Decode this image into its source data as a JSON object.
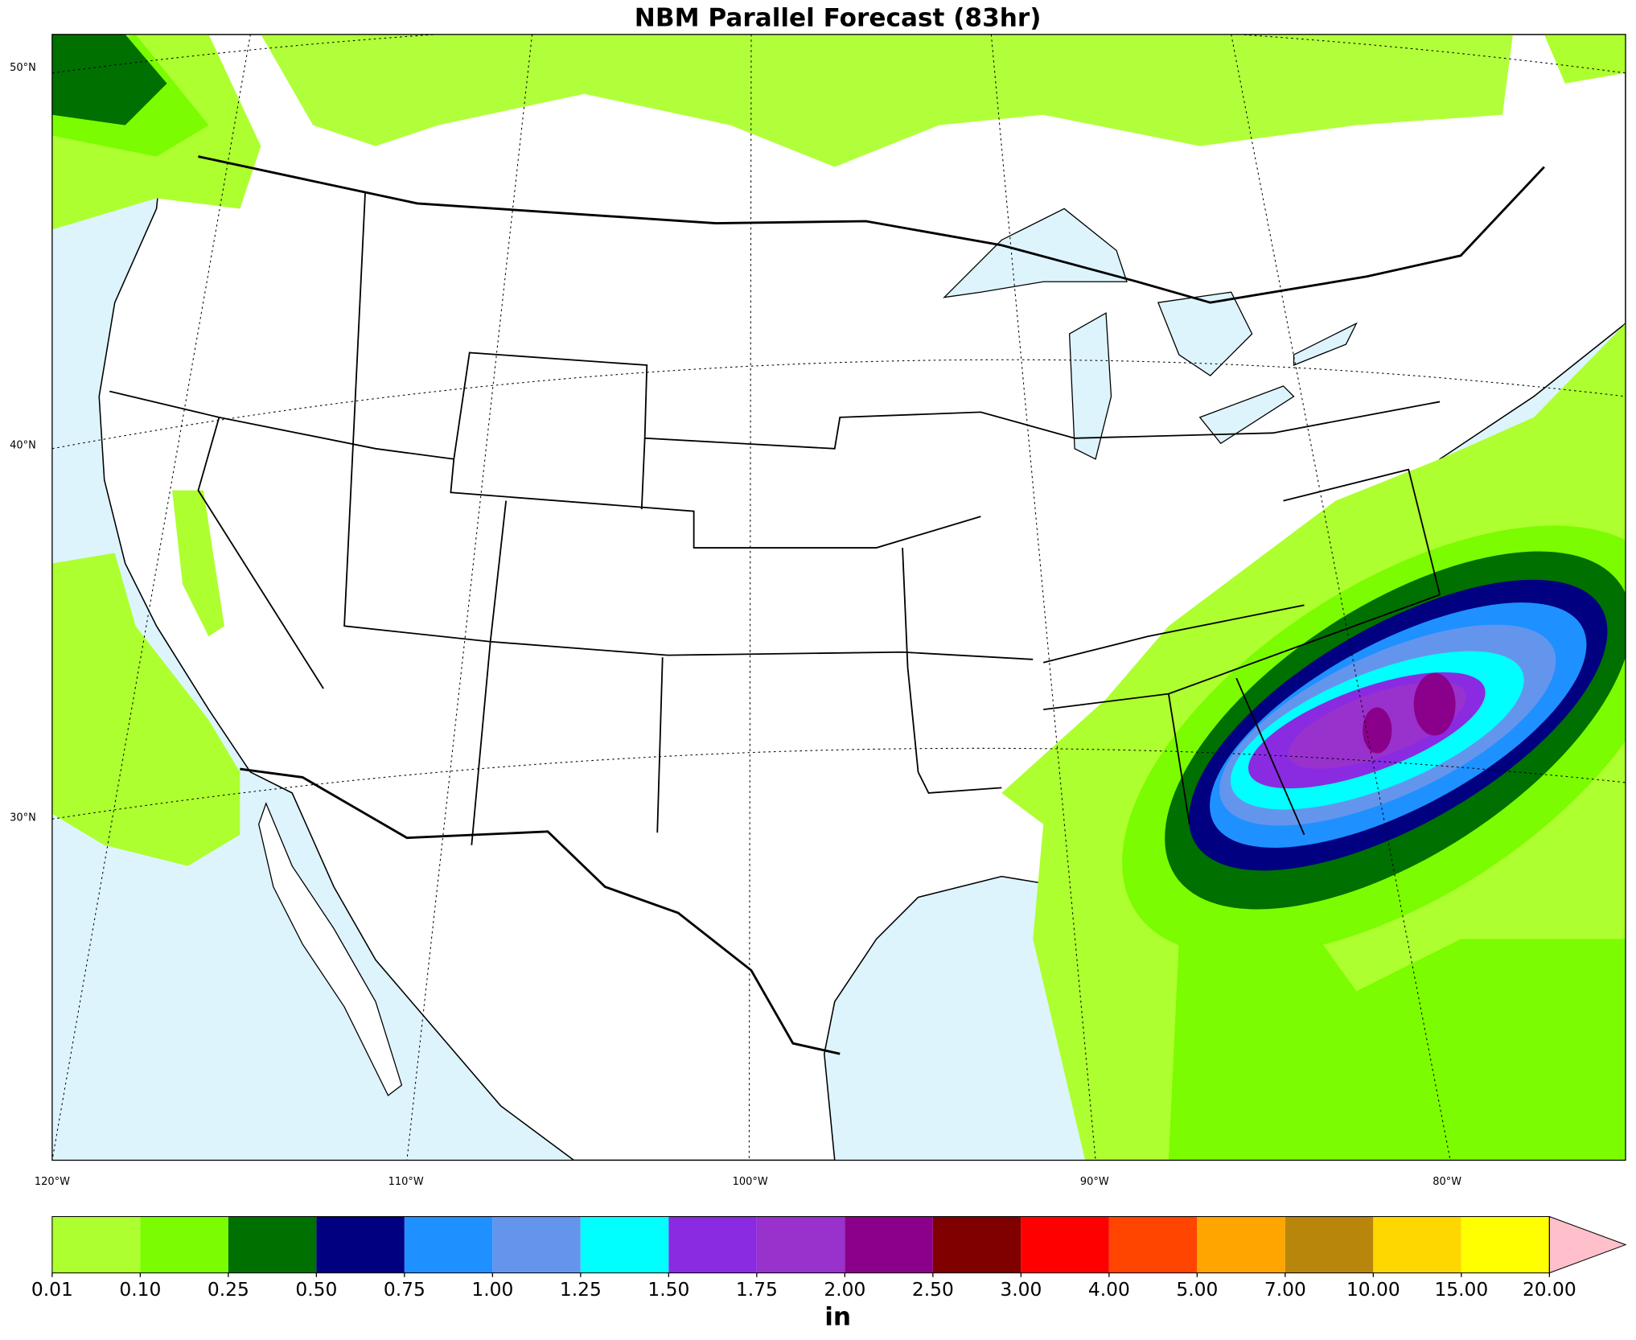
{
  "header": {
    "title": "NBM Parallel Forecast (83hr)"
  },
  "map": {
    "lat_labels": [
      "50°N",
      "40°N",
      "30°N"
    ],
    "lon_labels": [
      "120°W",
      "110°W",
      "100°W",
      "90°W",
      "80°W"
    ]
  },
  "colorbar": {
    "levels": [
      "0.01",
      "0.10",
      "0.25",
      "0.50",
      "0.75",
      "1.00",
      "1.25",
      "1.50",
      "1.75",
      "2.00",
      "2.50",
      "3.00",
      "4.00",
      "5.00",
      "7.00",
      "10.00",
      "15.00",
      "20.00"
    ],
    "colors": [
      "#adff2f",
      "#7cfc00",
      "#007000",
      "#000080",
      "#1e90ff",
      "#6495ed",
      "#00ffff",
      "#8a2be2",
      "#9932cc",
      "#8b008b",
      "#800000",
      "#ff0000",
      "#ff4500",
      "#ffa500",
      "#b8860b",
      "#ffd700",
      "#ffff00"
    ],
    "extend_color": "#ffc0cb",
    "unit": "in"
  }
}
